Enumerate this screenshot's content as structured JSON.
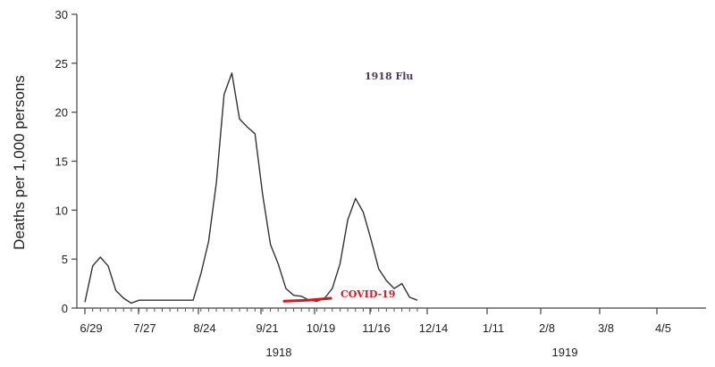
{
  "chart_data": {
    "type": "line",
    "ylabel": "Deaths per 1,000 persons",
    "ylim": [
      0,
      30
    ],
    "yticks": [
      "0",
      "5",
      "10",
      "15",
      "20",
      "25",
      "30"
    ],
    "xtick_labels": [
      "6/29",
      "7/27",
      "8/24",
      "9/21",
      "10/19",
      "11/16",
      "12/14",
      "1/11",
      "2/8",
      "3/8",
      "4/5"
    ],
    "year_labels": [
      "1918",
      "1919"
    ],
    "grid": false,
    "series": [
      {
        "name": "1918 Flu",
        "color": "#333333",
        "values": [
          0.6,
          4.3,
          5.2,
          4.3,
          1.8,
          1.0,
          0.5,
          0.8,
          0.8,
          0.8,
          0.8,
          0.8,
          0.8,
          0.8,
          0.8,
          3.5,
          6.8,
          12.8,
          21.8,
          24.0,
          19.3,
          18.5,
          17.8,
          11.5,
          6.5,
          4.5,
          2.0,
          1.3,
          1.2,
          0.8,
          0.7,
          1.0,
          2.0,
          4.5,
          9.0,
          11.2,
          9.8,
          7.0,
          4.0,
          2.8,
          2.0,
          2.5,
          1.1,
          0.8
        ]
      },
      {
        "name": "COVID-19",
        "color": "#e0141e",
        "values": [
          0.7,
          0.8,
          1.0
        ]
      }
    ],
    "annotations": [
      {
        "text": "1918 Flu",
        "color": "#4a3a5a"
      },
      {
        "text": "COVID-19",
        "color": "#e0141e"
      }
    ]
  }
}
